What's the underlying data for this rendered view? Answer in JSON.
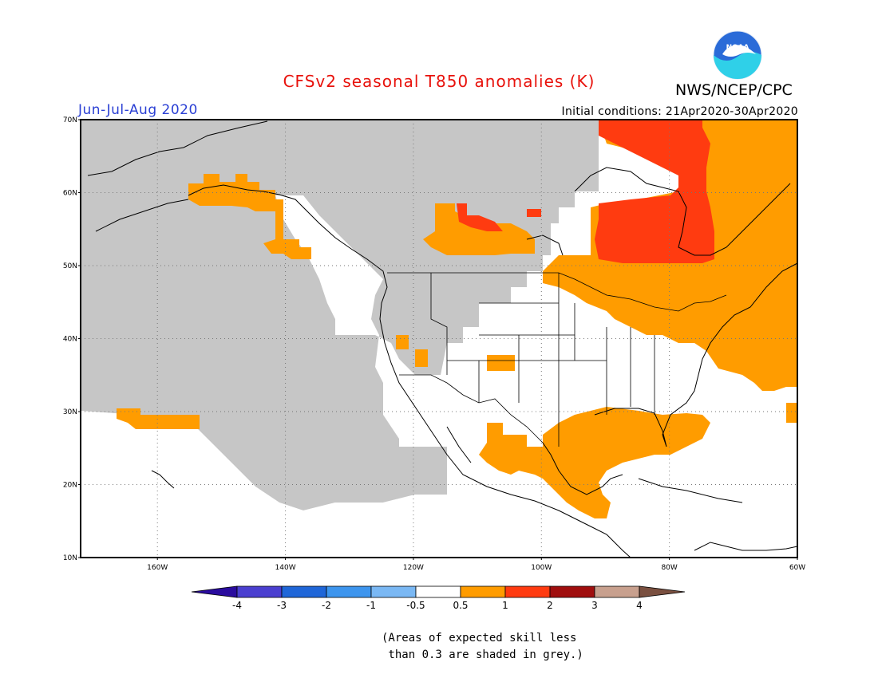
{
  "title": "CFSv2 seasonal T850 anomalies (K)",
  "season": "Jun-Jul-Aug 2020",
  "agency": "NWS/NCEP/CPC",
  "logo_text": "NOAA",
  "initial_conditions": "Initial conditions: 21Apr2020-30Apr2020",
  "note_line1": "(Areas of expected skill less",
  "note_line2": " than 0.3 are shaded in grey.)",
  "colors": {
    "title": "#e8120c",
    "season": "#2a3fd4",
    "skill_grey": "#c6c6c6",
    "land_white": "#ffffff",
    "coast": "#000000"
  },
  "map": {
    "lon_range": [
      -172,
      -60
    ],
    "lat_range": [
      10,
      70
    ],
    "lat_ticks": [
      {
        "value": 10,
        "label": "10N"
      },
      {
        "value": 20,
        "label": "20N"
      },
      {
        "value": 30,
        "label": "30N"
      },
      {
        "value": 40,
        "label": "40N"
      },
      {
        "value": 50,
        "label": "50N"
      },
      {
        "value": 60,
        "label": "60N"
      },
      {
        "value": 70,
        "label": "70N"
      }
    ],
    "lon_ticks": [
      {
        "value": -160,
        "label": "160W"
      },
      {
        "value": -140,
        "label": "140W"
      },
      {
        "value": -120,
        "label": "120W"
      },
      {
        "value": -100,
        "label": "100W"
      },
      {
        "value": -80,
        "label": "80W"
      },
      {
        "value": -60,
        "label": "60W"
      }
    ]
  },
  "colorbar": {
    "labels": [
      "-4",
      "-3",
      "-2",
      "-1",
      "-0.5",
      "0.5",
      "1",
      "2",
      "3",
      "4"
    ],
    "colors": [
      "#2a0c9e",
      "#4a3fd0",
      "#1f66d8",
      "#3d95ee",
      "#7ab8f4",
      "#ffffff",
      "#ff9c00",
      "#ff3b10",
      "#a00e0e",
      "#c8a08e",
      "#7a5040"
    ]
  },
  "regions": [
    {
      "name": "region-alaska-warm",
      "category": "0.5-1",
      "lat": [
        55,
        62
      ],
      "lon": [
        -158,
        -140
      ]
    },
    {
      "name": "region-hudson-warm-strong",
      "category": "1-2",
      "lat": [
        52,
        70
      ],
      "lon": [
        -90,
        -75
      ]
    },
    {
      "name": "region-northeast-warm",
      "category": "0.5-1",
      "lat": [
        35,
        70
      ],
      "lon": [
        -88,
        -60
      ]
    },
    {
      "name": "region-gulf-warm",
      "category": "0.5-1",
      "lat": [
        15,
        30
      ],
      "lon": [
        -100,
        -80
      ]
    },
    {
      "name": "region-central-canada-warm",
      "category": "0.5-1",
      "lat": [
        50,
        58
      ],
      "lon": [
        -113,
        -103
      ]
    },
    {
      "name": "region-hawaii-warm",
      "category": "0.5-1",
      "lat": [
        28,
        30
      ],
      "lon": [
        -165,
        -155
      ]
    }
  ]
}
